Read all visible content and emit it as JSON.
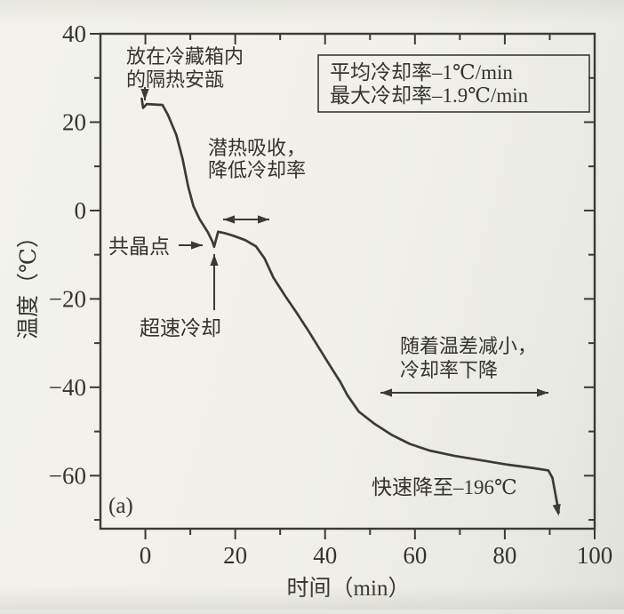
{
  "figure": {
    "panel_label": "(a)",
    "x_axis_title": "时间（min）",
    "y_axis_title": "温度（℃）"
  },
  "legend": {
    "lines": [
      "平均冷却率–1℃/min",
      "最大冷却率–1.9℃/min"
    ]
  },
  "annotations": {
    "ampoule": [
      "放在冷藏箱内",
      "的隔热安瓿"
    ],
    "latent": [
      "潜热吸收，",
      "降低冷却率"
    ],
    "eutectic": [
      "共晶点"
    ],
    "supercool": [
      "超速冷却"
    ],
    "temp_diff": [
      "随着温差减小，",
      "冷却率下降"
    ],
    "rapid": [
      "快速降至–196℃"
    ]
  },
  "colors": {
    "ink": "#3b3a36",
    "text": "#34332e",
    "paper": "#f1f0ea"
  },
  "chart_data": {
    "type": "line",
    "title": "",
    "xlabel": "时间（min）",
    "ylabel": "温度（℃）",
    "xlim": [
      -10,
      100
    ],
    "ylim": [
      -72,
      40
    ],
    "x_ticks": [
      0,
      20,
      40,
      60,
      80,
      100
    ],
    "y_ticks": [
      40,
      20,
      0,
      -20,
      -40,
      -60
    ],
    "x_minor_step": 10,
    "y_minor_step": 10,
    "grid": false,
    "legend_position": "top-right",
    "series": [
      {
        "name": "冷却曲线",
        "points": [
          [
            -0.8,
            25.3
          ],
          [
            -0.5,
            23.2
          ],
          [
            0.3,
            24.1
          ],
          [
            3.8,
            23.9
          ],
          [
            5.0,
            21.7
          ],
          [
            6.9,
            17.1
          ],
          [
            8.3,
            11.6
          ],
          [
            9.5,
            5.5
          ],
          [
            10.7,
            1.0
          ],
          [
            12.1,
            -2.0
          ],
          [
            13.9,
            -4.9
          ],
          [
            14.9,
            -7.0
          ],
          [
            15.3,
            -8.2
          ],
          [
            16.2,
            -4.8
          ],
          [
            17.6,
            -5.1
          ],
          [
            19.6,
            -5.7
          ],
          [
            22.2,
            -6.7
          ],
          [
            24.6,
            -8.1
          ],
          [
            26.5,
            -10.8
          ],
          [
            28.5,
            -15.2
          ],
          [
            31.1,
            -19.3
          ],
          [
            33.7,
            -23.2
          ],
          [
            36.4,
            -27.4
          ],
          [
            39.0,
            -31.7
          ],
          [
            41.4,
            -35.6
          ],
          [
            43.4,
            -38.8
          ],
          [
            44.9,
            -41.7
          ],
          [
            47.5,
            -45.5
          ],
          [
            50.9,
            -48.2
          ],
          [
            54.9,
            -50.8
          ],
          [
            58.8,
            -52.8
          ],
          [
            63.2,
            -54.3
          ],
          [
            68.7,
            -55.5
          ],
          [
            74.7,
            -56.5
          ],
          [
            80.6,
            -57.5
          ],
          [
            86.5,
            -58.3
          ],
          [
            89.7,
            -58.8
          ],
          [
            90.6,
            -60.5
          ],
          [
            92.0,
            -68.3
          ]
        ]
      }
    ],
    "curve_annotations": [
      "放在冷藏箱内的隔热安瓿 → 曲线起点 (0 min, 23℃)",
      "共晶点 → 过冷谷底 (15 min, -8℃)",
      "超速冷却 → 指向谷底的竖直箭头",
      "潜热吸收，降低冷却率 → 平台区 17–28 min",
      "随着温差减小，冷却率下降 → 52–90 min",
      "快速降至–196℃ → 末端骤降箭头 (90–92 min)"
    ]
  }
}
